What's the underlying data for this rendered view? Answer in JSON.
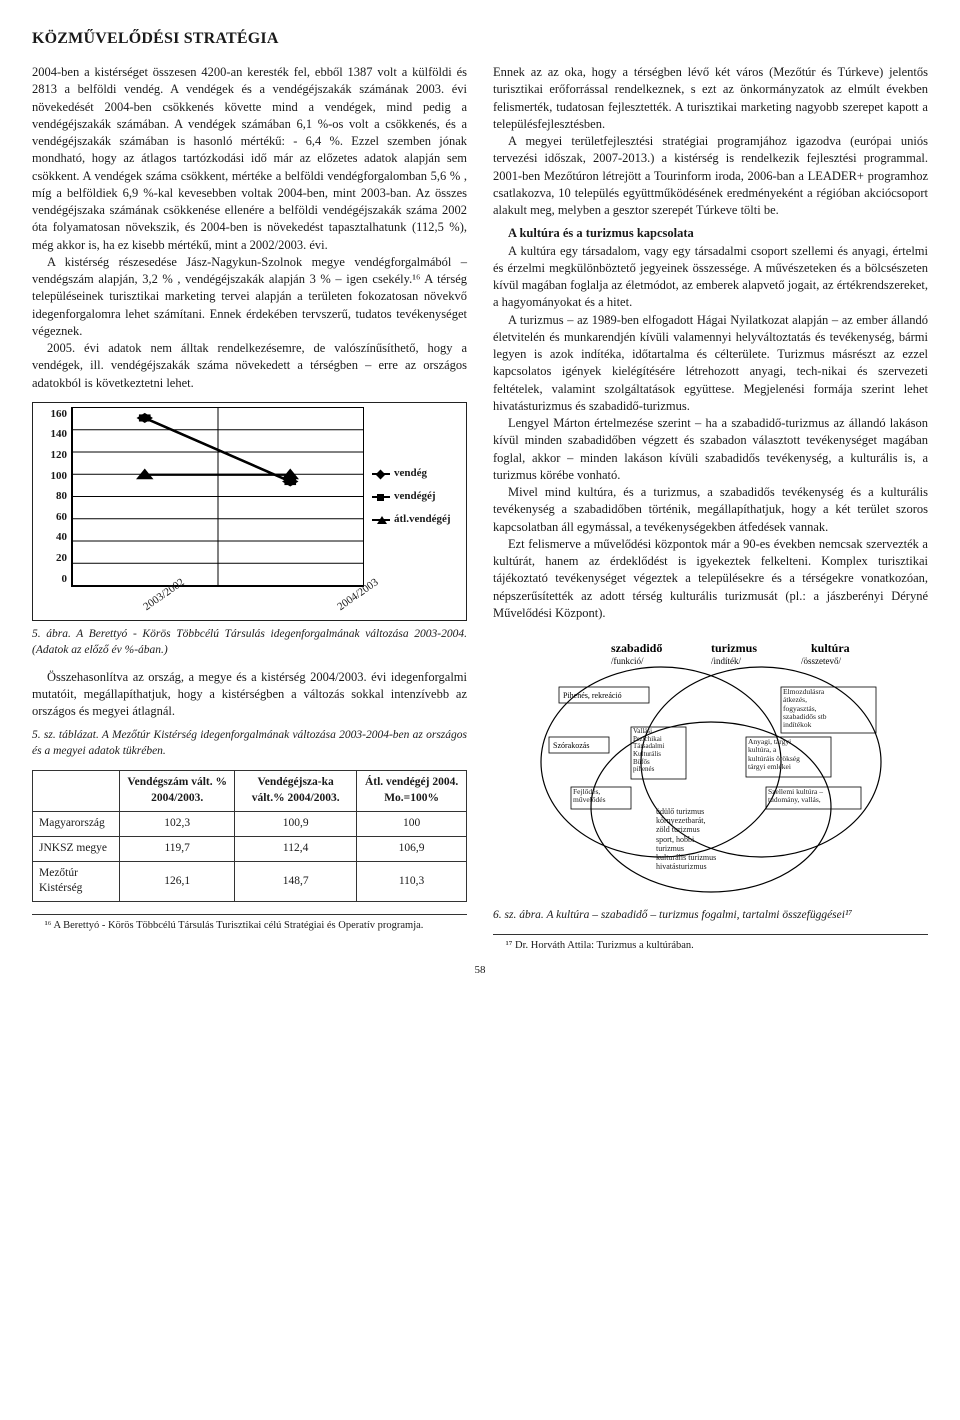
{
  "title": "KÖZMŰVELŐDÉSI STRATÉGIA",
  "left": {
    "p1": "2004-ben a kistérséget összesen 4200-an keresték fel, ebből 1387 volt a külföldi és 2813 a belföldi vendég. A vendégek és a vendégéjszakák számának 2003. évi növekedését 2004-ben csökkenés követte mind a vendégek, mind pedig a vendégéjszakák számában. A vendégek számában 6,1 %-os volt a csökkenés, és a vendégéjszakák számában is hasonló mértékű: - 6,4 %. Ezzel szemben jónak mondható, hogy az átlagos tartózkodási idő már az előzetes adatok alapján sem csökkent. A vendégek száma csökkent, mértéke a belföldi vendégforgalomban 5,6 % , míg a belföldiek 6,9 %-kal kevesebben voltak 2004-ben, mint 2003-ban. Az összes vendégéjszaka számának csökkenése ellenére a belföldi vendégéjszakák száma 2002 óta folyamatosan növekszik, és 2004-ben is növekedést tapasztalhatunk (112,5 %), még akkor is, ha ez kisebb mértékű, mint a 2002/2003. évi.",
    "p2": "A kistérség részesedése Jász-Nagykun-Szolnok megye vendégforgalmából – vendégszám alapján, 3,2 % , vendégéjszakák alapján 3 % – igen csekély.¹⁶ A térség településeinek turisztikai marketing tervei alapján a területen fokozatosan növekvő idegenforgalomra lehet számítani. Ennek érdekében tervszerű, tudatos tevékenységet végeznek.",
    "p3": "2005. évi adatok nem álltak rendelkezésemre, de valószínűsíthető, hogy a vendégek, ill. vendégéjszakák száma növekedett a térségben – erre az országos adatokból is következtetni lehet.",
    "fig5_caption": "5. ábra. A Berettyó - Körös Többcélú Társulás idegenforgalmának változása 2003-2004. (Adatok az előző év %-ában.)",
    "p4": "Összehasonlítva az ország, a megye és a kistérség 2004/2003. évi idegenforgalmi mutatóit, megállapíthatjuk, hogy a kistérségben a változás sokkal intenzívebb az országos és megyei átlagnál.",
    "tbl5_caption": "5. sz. táblázat. A Mezőtúr Kistérség idegenforgalmának változása 2003-2004-ben az országos és a megyei adatok tükrében."
  },
  "chart5": {
    "ylabels": [
      "160",
      "140",
      "120",
      "100",
      "80",
      "60",
      "40",
      "20",
      "0"
    ],
    "xlabels": [
      "2003/2002",
      "2004/2003"
    ],
    "legend": [
      "vendég",
      "vendégéj",
      "átl.vendégéj"
    ],
    "series": {
      "vendeg": [
        151,
        94
      ],
      "vendegej": [
        151,
        94
      ],
      "atl": [
        100,
        100
      ]
    },
    "colors": {
      "line": "#000000",
      "bg": "#ffffff"
    }
  },
  "table5": {
    "headers": [
      "",
      "Vendégszám vált. % 2004/2003.",
      "Vendégéjsza-ka vált.% 2004/2003.",
      "Átl. vendégéj 2004. Mo.=100%"
    ],
    "rows": [
      [
        "Magyarország",
        "102,3",
        "100,9",
        "100"
      ],
      [
        "JNKSZ megye",
        "119,7",
        "112,4",
        "106,9"
      ],
      [
        "Mezőtúr Kistérség",
        "126,1",
        "148,7",
        "110,3"
      ]
    ]
  },
  "right": {
    "p1": "Ennek az az oka, hogy a térségben lévő két város (Mezőtúr és Túrkeve) jelentős turisztikai erőforrással rendelkeznek, s ezt az önkormányzatok az elmúlt években felismerték, tudatosan fejlesztették. A turisztikai marketing nagyobb szerepet kapott a településfejlesztésben.",
    "p2": "A megyei területfejlesztési stratégiai programjához igazodva (európai uniós tervezési időszak, 2007-2013.) a kistérség is rendelkezik fejlesztési programmal. 2001-ben Mezőtúron létrejött a Tourinform iroda, 2006-ban a LEADER+ programhoz csatlakozva, 10 település együttműködésének eredményeként a régióban akciócsoport alakult meg, melyben a gesztor szerepét Túrkeve tölti be.",
    "subhead": "A kultúra és a turizmus kapcsolata",
    "p3": "A kultúra egy társadalom, vagy egy társadalmi csoport szellemi és anyagi, értelmi és érzelmi megkülönböztető jegyeinek összessége. A művészeteken és a bölcsészeten kívül magában foglalja az életmódot, az emberek alapvető jogait, az értékrendszereket, a hagyományokat és a hitet.",
    "p4": "A turizmus – az 1989-ben elfogadott Hágai Nyilatkozat alapján – az ember állandó életvitelén és munkarendjén kívüli valamennyi helyváltoztatás és tevékenység, bármi legyen is azok indítéka, időtartalma és célterülete. Turizmus másrészt az ezzel kapcsolatos igények kielégítésére létrehozott anyagi, tech-nikai és szervezeti feltételek, valamint szolgáltatások együttese. Megjelenési formája szerint lehet hivatásturizmus és szabadidő-turizmus.",
    "p5": "Lengyel Márton értelmezése szerint – ha a szabadidő-turizmus az állandó lakáson kívül minden szabadidőben végzett és szabadon választott tevékenységet magában foglal, akkor – minden lakáson kívüli szabadidős tevékenység, a kulturális is, a turizmus körébe vonható.",
    "p6": "Mivel mind kultúra, és a turizmus, a szabadidős tevékenység és a kulturális tevékenység a szabadidőben történik, megállapíthatjuk, hogy a két terület szoros kapcsolatban áll egymással, a tevékenységekben átfedések vannak.",
    "p7": "Ezt felismerve a művelődési központok már a 90-es években nemcsak szervezték a kultúrát, hanem az érdeklődést is igyekeztek felkelteni. Komplex turisztikai tájékoztató tevékenységet végeztek a településekre és a térségekre vonatkozóan, népszerűsítették az adott térség kulturális turizmusát (pl.: a jászberényi Déryné Művelődési Központ).",
    "fig6_caption": "6. sz. ábra. A kultúra – szabadidő – turizmus fogalmi, tartalmi összefüggései¹⁷"
  },
  "venn": {
    "labels": {
      "szabadido": "szabadidő",
      "turizmus": "turizmus",
      "kultura": "kultúra",
      "szabadido_sub": "/funkció/",
      "turizmus_sub": "/indíték/",
      "kultura_sub": "/összetevő/",
      "left_box": "Pihenés, rekreáció",
      "right_box": "Elmozdulásra\nátkezés,\nfogyasztás,\nszabadidős stb\nindítékok",
      "left_mid": "Vallási\nPszichikai\nTársadalmi\nKulturális\nBüfős\npihenés",
      "left_low": "Fejlődés,\nművelődés",
      "right_mid": "Anyagi, tárgyi\nkultúra, a\nkultúráis örökség\ntárgyi emlékei",
      "right_low": "Szellemi kultúra –\ntudomány, vallás,",
      "center": "üdülő turizmus\nkörnyezetbarát,\nzöld turizmus\nsport, hobbi\nturizmus\nkulturális turizmus\nhivatásturizmus"
    },
    "colors": {
      "stroke": "#000000",
      "fill": "#ffffff"
    }
  },
  "footnotes": {
    "left": "¹⁶ A Berettyó - Körös Többcélú Társulás Turisztikai célú Stratégiai és Operatív programja.",
    "right": "¹⁷ Dr. Horváth Attila: Turizmus a kultúrában."
  },
  "page_no": "58"
}
